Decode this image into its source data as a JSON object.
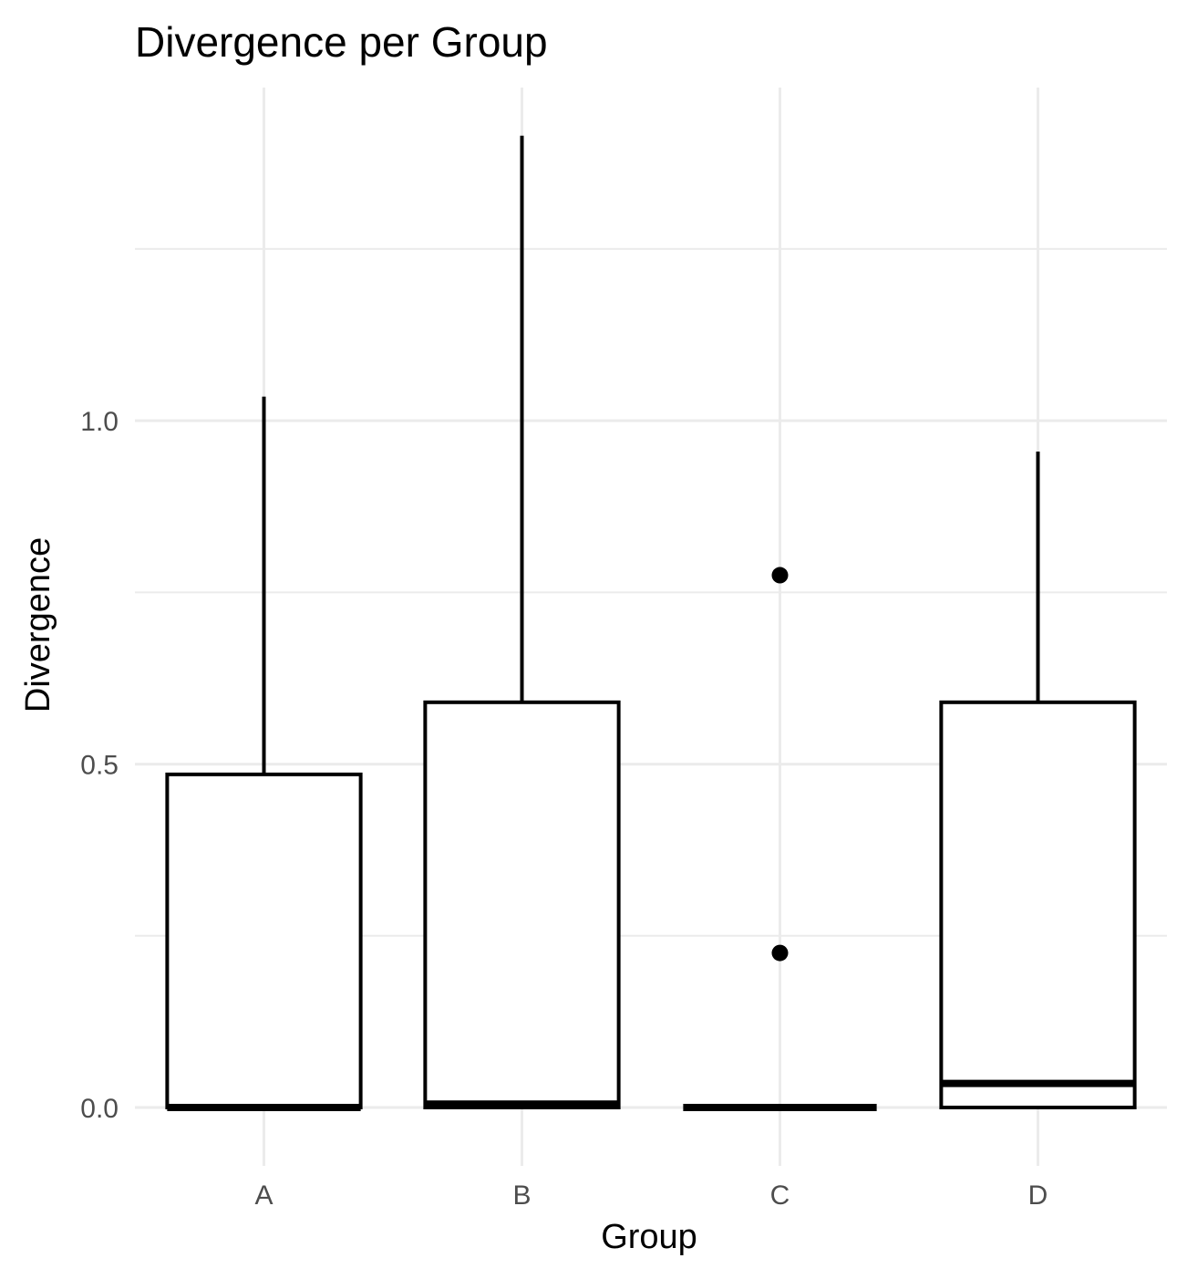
{
  "chart_data": {
    "type": "boxplot",
    "title": "Divergence per Group",
    "xlabel": "Group",
    "ylabel": "Divergence",
    "ylim": [
      -0.085,
      1.485
    ],
    "yticks": [
      0.0,
      0.5,
      1.0
    ],
    "ytick_labels": [
      "0.0",
      "0.5",
      "1.0"
    ],
    "minor_yticks": [
      0.25,
      0.75,
      1.25
    ],
    "categories": [
      "A",
      "B",
      "C",
      "D"
    ],
    "grid": true,
    "legend": "none",
    "boxes": [
      {
        "group": "A",
        "min": 0.0,
        "q1": 0.0,
        "median": 0.0,
        "q3": 0.485,
        "max": 1.035,
        "outliers": []
      },
      {
        "group": "B",
        "min": 0.0,
        "q1": 0.0,
        "median": 0.005,
        "q3": 0.59,
        "max": 1.415,
        "outliers": []
      },
      {
        "group": "C",
        "min": 0.0,
        "q1": 0.0,
        "median": 0.0,
        "q3": 0.0,
        "max": 0.0,
        "outliers": [
          0.225,
          0.775
        ]
      },
      {
        "group": "D",
        "min": 0.0,
        "q1": 0.0,
        "median": 0.035,
        "q3": 0.59,
        "max": 0.955,
        "outliers": []
      }
    ]
  }
}
